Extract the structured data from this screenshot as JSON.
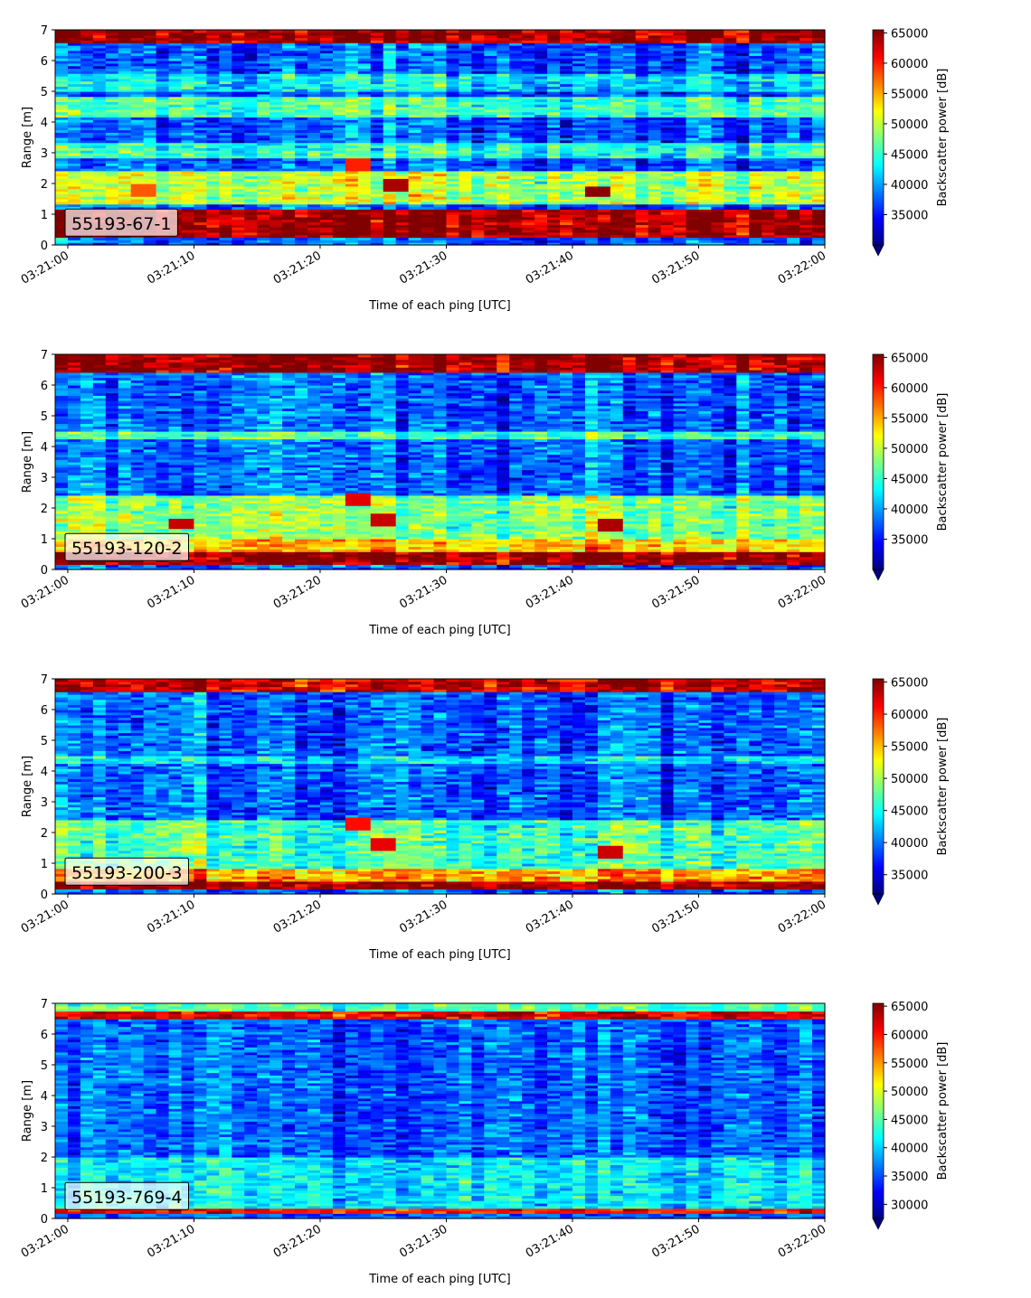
{
  "chart_data": [
    {
      "type": "heatmap",
      "panel_label": "55193-67-1",
      "xlabel": "Time of each ping [UTC]",
      "ylabel": "Range [m]",
      "x_ticks": [
        "03:21:00",
        "03:21:10",
        "03:21:20",
        "03:21:30",
        "03:21:40",
        "03:21:50",
        "03:22:00"
      ],
      "xlim": [
        "03:20:59",
        "03:22:00"
      ],
      "ylim": [
        0,
        7
      ],
      "y_ticks": [
        0,
        1,
        2,
        3,
        4,
        5,
        6,
        7
      ],
      "colorbar": {
        "label": "Backscatter power [dB]",
        "range": [
          30000,
          65500
        ],
        "ticks": [
          35000,
          40000,
          45000,
          50000,
          55000,
          60000,
          65000
        ],
        "extend": "min",
        "colormap": "jet"
      },
      "grid": false,
      "features": [
        {
          "range_m": [
            0.25,
            1.15
          ],
          "value": 65000,
          "desc": "strong bottom band"
        },
        {
          "range_m": [
            6.6,
            7.0
          ],
          "value": 65000,
          "desc": "strong top band"
        },
        {
          "range_m": [
            1.3,
            2.4
          ],
          "value": 50000
        },
        {
          "range_m": [
            2.8,
            3.3
          ],
          "value": 45000
        },
        {
          "range_m": [
            4.2,
            4.8
          ],
          "value": 46000
        },
        {
          "range_m": [
            5.0,
            5.6
          ],
          "value": 43000
        }
      ],
      "hotspots": [
        {
          "t": "03:21:06",
          "range_m": 1.8,
          "value": 58000
        },
        {
          "t": "03:21:23",
          "range_m": 2.6,
          "value": 60000
        },
        {
          "t": "03:21:26",
          "range_m": 1.95,
          "value": 64000
        },
        {
          "t": "03:21:42",
          "range_m": 1.75,
          "value": 65000
        }
      ]
    },
    {
      "type": "heatmap",
      "panel_label": "55193-120-2",
      "xlabel": "Time of each ping [UTC]",
      "ylabel": "Range [m]",
      "x_ticks": [
        "03:21:00",
        "03:21:10",
        "03:21:20",
        "03:21:30",
        "03:21:40",
        "03:21:50",
        "03:22:00"
      ],
      "xlim": [
        "03:20:59",
        "03:22:00"
      ],
      "ylim": [
        0,
        7
      ],
      "y_ticks": [
        0,
        1,
        2,
        3,
        4,
        5,
        6,
        7
      ],
      "colorbar": {
        "label": "Backscatter power [dB]",
        "range": [
          30000,
          65500
        ],
        "ticks": [
          35000,
          40000,
          45000,
          50000,
          55000,
          60000,
          65000
        ],
        "extend": "min",
        "colormap": "jet"
      },
      "grid": false,
      "features": [
        {
          "range_m": [
            0.2,
            0.55
          ],
          "value": 65000
        },
        {
          "range_m": [
            0.55,
            1.0
          ],
          "value": 54000
        },
        {
          "range_m": [
            6.45,
            7.0
          ],
          "value": 64000
        },
        {
          "range_m": [
            1.0,
            2.4
          ],
          "value": 48000
        },
        {
          "range_m": [
            4.25,
            4.5
          ],
          "value": 46000
        }
      ],
      "hotspots": [
        {
          "t": "03:21:09",
          "range_m": 1.5,
          "value": 63000
        },
        {
          "t": "03:21:23",
          "range_m": 2.3,
          "value": 62000
        },
        {
          "t": "03:21:25",
          "range_m": 1.65,
          "value": 63000
        },
        {
          "t": "03:21:43",
          "range_m": 1.45,
          "value": 64000
        }
      ]
    },
    {
      "type": "heatmap",
      "panel_label": "55193-200-3",
      "xlabel": "Time of each ping [UTC]",
      "ylabel": "Range [m]",
      "x_ticks": [
        "03:21:00",
        "03:21:10",
        "03:21:20",
        "03:21:30",
        "03:21:40",
        "03:21:50",
        "03:22:00"
      ],
      "xlim": [
        "03:20:59",
        "03:22:00"
      ],
      "ylim": [
        0,
        7
      ],
      "y_ticks": [
        0,
        1,
        2,
        3,
        4,
        5,
        6,
        7
      ],
      "colorbar": {
        "label": "Backscatter power [dB]",
        "range": [
          32000,
          65500
        ],
        "ticks": [
          35000,
          40000,
          45000,
          50000,
          55000,
          60000,
          65000
        ],
        "extend": "min",
        "colormap": "jet"
      },
      "grid": false,
      "features": [
        {
          "range_m": [
            0.15,
            0.45
          ],
          "value": 65000
        },
        {
          "range_m": [
            0.45,
            0.8
          ],
          "value": 56000
        },
        {
          "range_m": [
            6.55,
            7.0
          ],
          "value": 63000
        },
        {
          "range_m": [
            0.8,
            2.4
          ],
          "value": 47000
        },
        {
          "range_m": [
            4.25,
            4.5
          ],
          "value": 44000
        }
      ],
      "hotspots": [
        {
          "t": "03:21:23",
          "range_m": 2.3,
          "value": 61000
        },
        {
          "t": "03:21:25",
          "range_m": 1.65,
          "value": 62000
        },
        {
          "t": "03:21:43",
          "range_m": 1.4,
          "value": 63000
        }
      ]
    },
    {
      "type": "heatmap",
      "panel_label": "55193-769-4",
      "xlabel": "Time of each ping [UTC]",
      "ylabel": "Range [m]",
      "x_ticks": [
        "03:21:00",
        "03:21:10",
        "03:21:20",
        "03:21:30",
        "03:21:40",
        "03:21:50",
        "03:22:00"
      ],
      "xlim": [
        "03:20:59",
        "03:22:00"
      ],
      "ylim": [
        0,
        7
      ],
      "y_ticks": [
        0,
        1,
        2,
        3,
        4,
        5,
        6,
        7
      ],
      "colorbar": {
        "label": "Backscatter power [dB]",
        "range": [
          27500,
          65500
        ],
        "ticks": [
          30000,
          35000,
          40000,
          45000,
          50000,
          55000,
          60000,
          65000
        ],
        "extend": "min",
        "colormap": "jet"
      },
      "grid": false,
      "features": [
        {
          "range_m": [
            0.18,
            0.35
          ],
          "value": 60000
        },
        {
          "range_m": [
            6.5,
            6.75
          ],
          "value": 62000
        },
        {
          "range_m": [
            6.75,
            7.0
          ],
          "value": 45000
        },
        {
          "range_m": [
            0.35,
            2.0
          ],
          "value": 41000
        }
      ],
      "hotspots": []
    }
  ]
}
